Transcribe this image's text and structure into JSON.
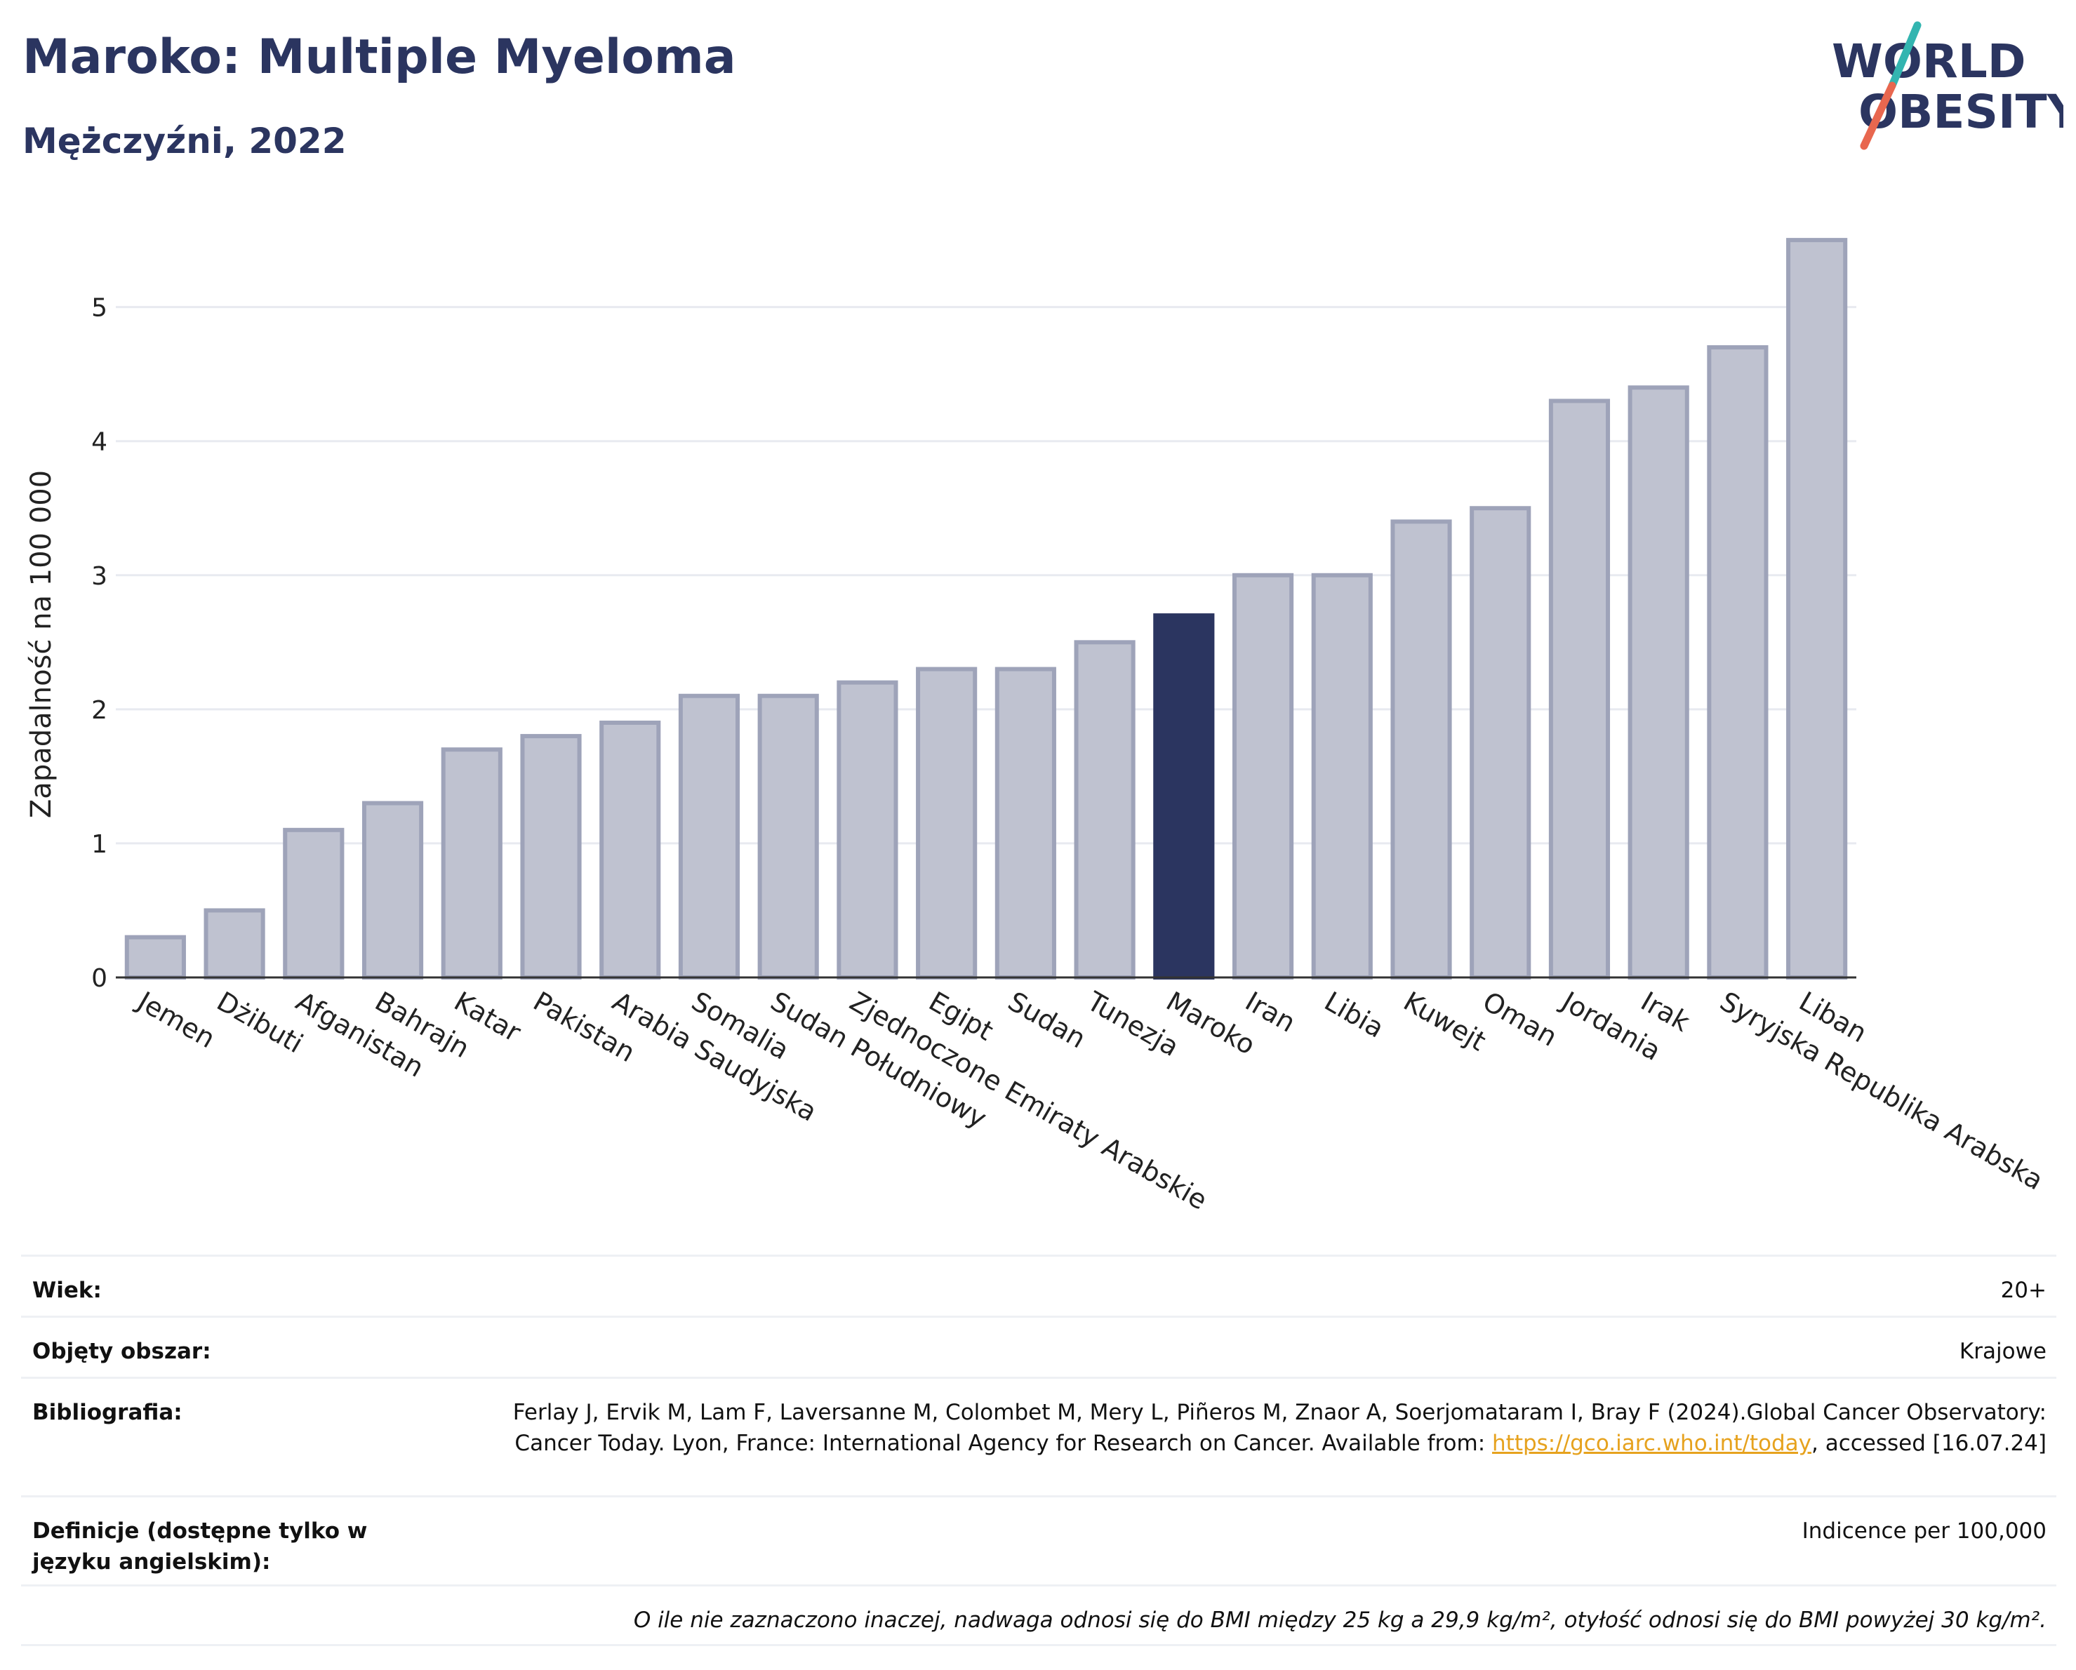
{
  "header": {
    "title": "Maroko: Multiple Myeloma",
    "subtitle": "Mężczyźni, 2022"
  },
  "logo": {
    "line1_pre": "W",
    "line1_o": "O",
    "line1_post": "RLD",
    "line2_o": "O",
    "line2_post": "BESITY",
    "colors": {
      "text": "#2b3560",
      "slash_top": "#33b5b0",
      "slash_bottom": "#e8674f"
    }
  },
  "chart_data": {
    "type": "bar",
    "ylabel": "Zapadalność na 100 000",
    "ylim": [
      0,
      5.6
    ],
    "yticks": [
      0,
      1,
      2,
      3,
      4,
      5
    ],
    "grid": true,
    "highlight": "Maroko",
    "colors": {
      "bar": "#bfc2d0",
      "bar_border": "#9ea3b9",
      "highlight": "#2b3560",
      "grid": "#e8eaf0"
    },
    "categories": [
      "Jemen",
      "Dżibuti",
      "Afganistan",
      "Bahrajn",
      "Katar",
      "Pakistan",
      "Arabia Saudyjska",
      "Somalia",
      "Sudan Południowy",
      "Zjednoczone Emiraty Arabskie",
      "Egipt",
      "Sudan",
      "Tunezja",
      "Maroko",
      "Iran",
      "Libia",
      "Kuwejt",
      "Oman",
      "Jordania",
      "Irak",
      "Syryjska Republika Arabska",
      "Liban"
    ],
    "values": [
      0.3,
      0.5,
      1.1,
      1.3,
      1.7,
      1.8,
      1.9,
      2.1,
      2.1,
      2.2,
      2.3,
      2.3,
      2.5,
      2.7,
      3.0,
      3.0,
      3.4,
      3.5,
      4.3,
      4.4,
      4.7,
      5.5
    ]
  },
  "info": [
    {
      "key": "Wiek:",
      "value": "20+"
    },
    {
      "key": "Objęty obszar:",
      "value": "Krajowe"
    },
    {
      "key": "Bibliografia:",
      "value_pre": "Ferlay J, Ervik M, Lam F, Laversanne M, Colombet M, Mery L, Piñeros M, Znaor A, Soerjomataram I, Bray F (2024).Global Cancer Observatory: Cancer Today. Lyon, France: International Agency for Research on Cancer. Available from: ",
      "link": "https://gco.iarc.who.int/today",
      "value_post": ", accessed [16.07.24]"
    },
    {
      "key": "Definicje (dostępne tylko w języku angielskim):",
      "value": "Indicence per 100,000"
    }
  ],
  "note": "O ile nie zaznaczono inaczej, nadwaga odnosi się do BMI między 25 kg a 29,9 kg/m², otyłość odnosi się do BMI powyżej 30 kg/m²."
}
